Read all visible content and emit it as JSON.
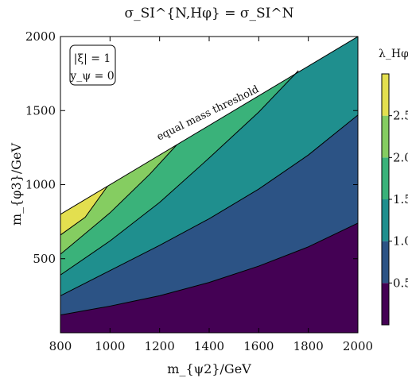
{
  "chart_data": {
    "type": "contour",
    "title": "σ_SI^{N,Hφ} = σ_SI^N",
    "xlabel": "m_{ψ2}/GeV",
    "ylabel": "m_{φ3}/GeV",
    "xlim": [
      800,
      2000
    ],
    "ylim": [
      0,
      2000
    ],
    "x_ticks": [
      800,
      1000,
      1200,
      1400,
      1600,
      1800,
      2000
    ],
    "y_ticks": [
      500,
      1000,
      1500,
      2000
    ],
    "annotation": "equal mass threshold",
    "legend_box": [
      "|ξ| = 1",
      "y_ψ = 0"
    ],
    "colorbar": {
      "label": "λ_Hφ",
      "ticks": [
        "0.5",
        "1.0",
        "1.5",
        "2.0",
        "2.5"
      ],
      "range": [
        0,
        3.0
      ]
    },
    "levels": [
      {
        "lambda_range": [
          0.0,
          0.5
        ],
        "color": "#440154"
      },
      {
        "lambda_range": [
          0.5,
          1.0
        ],
        "color": "#2c5385"
      },
      {
        "lambda_range": [
          1.0,
          1.5
        ],
        "color": "#1f8f8e"
      },
      {
        "lambda_range": [
          1.5,
          2.0
        ],
        "color": "#3ab27a"
      },
      {
        "lambda_range": [
          2.0,
          2.5
        ],
        "color": "#85cd61"
      },
      {
        "lambda_range": [
          2.5,
          3.0
        ],
        "color": "#e3df4f"
      }
    ],
    "contour_lines": [
      {
        "lambda": 0.5,
        "points": [
          [
            800,
            120
          ],
          [
            1000,
            180
          ],
          [
            1200,
            250
          ],
          [
            1400,
            340
          ],
          [
            1600,
            450
          ],
          [
            1800,
            580
          ],
          [
            2000,
            740
          ]
        ]
      },
      {
        "lambda": 1.0,
        "points": [
          [
            800,
            250
          ],
          [
            1000,
            420
          ],
          [
            1200,
            590
          ],
          [
            1400,
            770
          ],
          [
            1600,
            970
          ],
          [
            1800,
            1200
          ],
          [
            2000,
            1470
          ]
        ]
      },
      {
        "lambda": 1.5,
        "points": [
          [
            800,
            390
          ],
          [
            1000,
            620
          ],
          [
            1200,
            880
          ],
          [
            1400,
            1180
          ],
          [
            1600,
            1490
          ],
          [
            1760,
            1770
          ]
        ]
      },
      {
        "lambda": 2.0,
        "points": [
          [
            800,
            530
          ],
          [
            1000,
            810
          ],
          [
            1160,
            1070
          ],
          [
            1270,
            1270
          ]
        ]
      },
      {
        "lambda": 2.5,
        "points": [
          [
            800,
            660
          ],
          [
            900,
            780
          ],
          [
            990,
            990
          ]
        ]
      }
    ],
    "threshold_line": [
      [
        800,
        800
      ],
      [
        2000,
        2000
      ]
    ]
  }
}
